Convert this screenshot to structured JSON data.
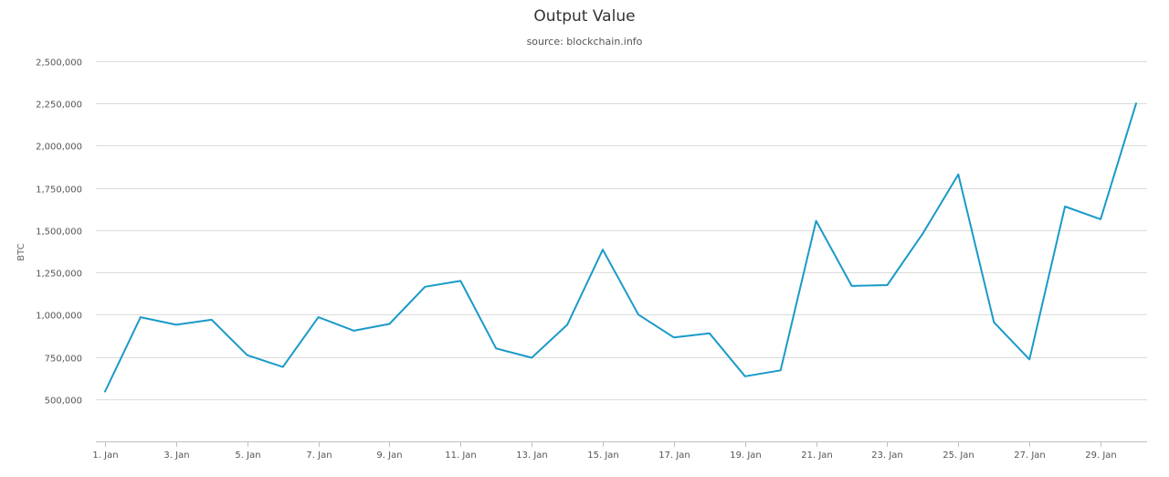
{
  "chart_data": {
    "type": "line",
    "title": "Output Value",
    "subtitle": "source: blockchain.info",
    "xlabel": "",
    "ylabel": "BTC",
    "ylim": [
      250000,
      2500000
    ],
    "yticks": [
      500000,
      750000,
      1000000,
      1250000,
      1500000,
      1750000,
      2000000,
      2250000,
      2500000
    ],
    "ytick_labels": [
      "500,000",
      "750,000",
      "1,000,000",
      "1,250,000",
      "1,500,000",
      "1,750,000",
      "2,000,000",
      "2,250,000",
      "2,500,000"
    ],
    "x": [
      1,
      2,
      3,
      4,
      5,
      6,
      7,
      8,
      9,
      10,
      11,
      12,
      13,
      14,
      15,
      16,
      17,
      18,
      19,
      20,
      21,
      22,
      23,
      24,
      25,
      26,
      27,
      28,
      29,
      30
    ],
    "xlim": [
      1,
      30
    ],
    "xticks": [
      1,
      3,
      5,
      7,
      9,
      11,
      13,
      15,
      17,
      19,
      21,
      23,
      25,
      27,
      29
    ],
    "xtick_labels": [
      "1. Jan",
      "3. Jan",
      "5. Jan",
      "7. Jan",
      "9. Jan",
      "11. Jan",
      "13. Jan",
      "15. Jan",
      "17. Jan",
      "19. Jan",
      "21. Jan",
      "23. Jan",
      "25. Jan",
      "27. Jan",
      "29. Jan"
    ],
    "grid": true,
    "series": [
      {
        "color": "#1a9ac8",
        "values": [
          545000,
          985000,
          940000,
          970000,
          760000,
          690000,
          985000,
          905000,
          945000,
          1165000,
          1200000,
          800000,
          745000,
          940000,
          1385000,
          1000000,
          865000,
          890000,
          635000,
          670000,
          1555000,
          1170000,
          1175000,
          1480000,
          1830000,
          955000,
          735000,
          1640000,
          1565000,
          2250000
        ]
      }
    ]
  }
}
